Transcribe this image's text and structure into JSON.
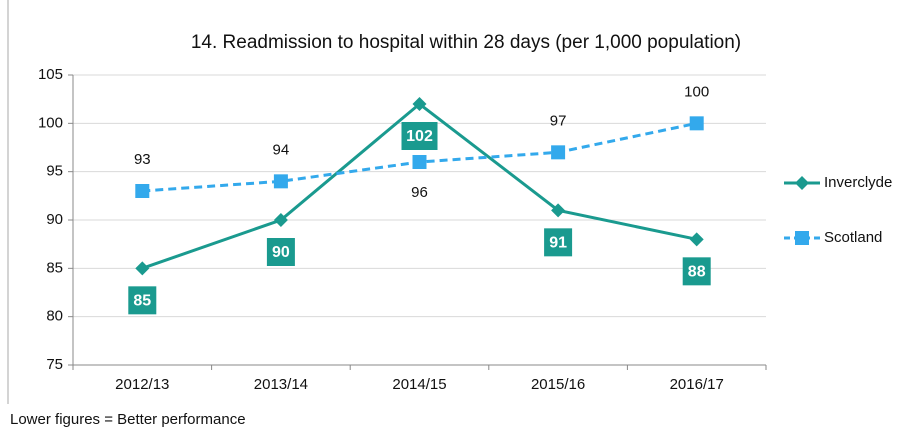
{
  "chart_data": {
    "type": "line",
    "title": "14. Readmission to hospital within 28 days (per 1,000 population)",
    "annotation": "Lower figures = Better performance",
    "categories": [
      "2012/13",
      "2013/14",
      "2014/15",
      "2015/16",
      "2016/17"
    ],
    "series": [
      {
        "name": "Inverclyde",
        "color": "#1a9a8f",
        "marker": "diamond",
        "dashed": false,
        "values": [
          85,
          90,
          102,
          91,
          88
        ]
      },
      {
        "name": "Scotland",
        "color": "#33a9ec",
        "marker": "square",
        "dashed": true,
        "values": [
          93,
          94,
          96,
          97,
          100
        ]
      }
    ],
    "ylim": [
      75,
      105
    ],
    "yticks": [
      75,
      80,
      85,
      90,
      95,
      100,
      105
    ],
    "grid": true,
    "legend": "right"
  }
}
